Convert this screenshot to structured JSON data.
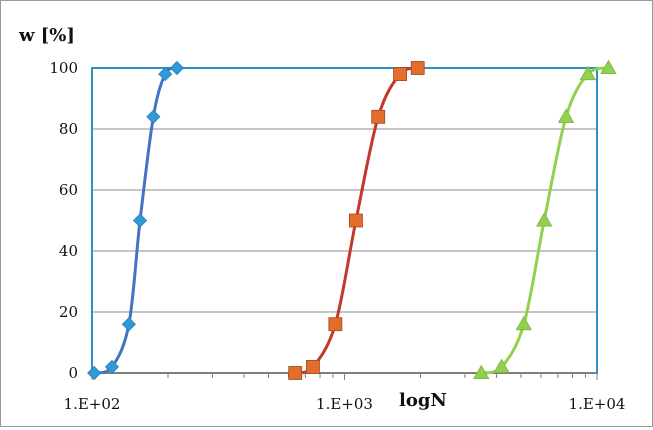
{
  "chart_data": {
    "type": "line",
    "smooth": true,
    "xlabel": "logN",
    "ylabel": "w [%]",
    "xscale": "log",
    "xlim": [
      100,
      10000
    ],
    "ylim": [
      0,
      100
    ],
    "yticks": [
      0,
      20,
      40,
      60,
      80,
      100
    ],
    "xtick_values": [
      100,
      1000,
      10000
    ],
    "xtick_labels": [
      "1.E+02",
      "1.E+03",
      "1.E+04"
    ],
    "grid": true,
    "legend": "none",
    "series": [
      {
        "color": "#4472c4",
        "marker_color": "#2e9bd6",
        "marker": "diamond",
        "x": [
          102,
          120,
          140,
          155,
          175,
          195,
          217
        ],
        "y": [
          0,
          2,
          16,
          50,
          84,
          98,
          100
        ]
      },
      {
        "color": "#c0392b",
        "marker_color": "#e46c2c",
        "marker": "square",
        "x": [
          638,
          750,
          920,
          1110,
          1360,
          1660,
          1950
        ],
        "y": [
          0,
          2,
          16,
          50,
          84,
          98,
          100
        ]
      },
      {
        "color": "#92d050",
        "marker_color": "#92d050",
        "marker": "triangle",
        "x": [
          3480,
          4190,
          5130,
          6180,
          7540,
          9200,
          11100
        ],
        "y": [
          0,
          2,
          16,
          50,
          84,
          98,
          100
        ]
      }
    ]
  }
}
